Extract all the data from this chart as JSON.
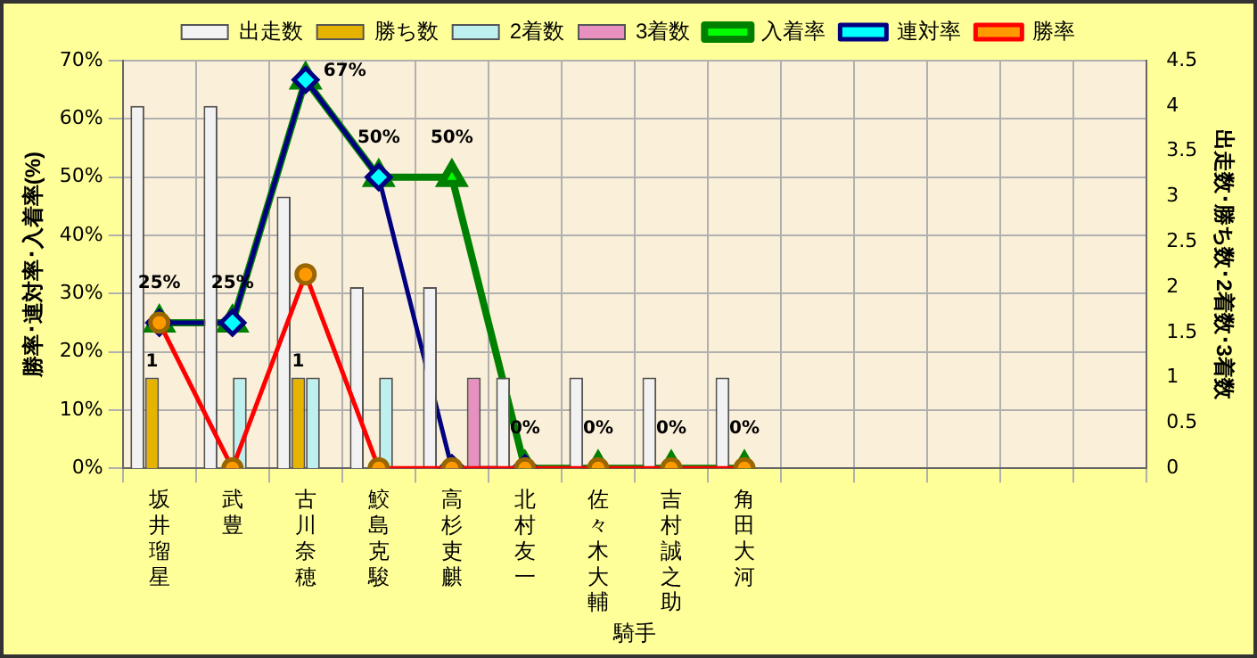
{
  "chart_data": {
    "type": "bar",
    "xlabel": "騎手",
    "ylabel": "勝率･連対率･入着率(%)",
    "y2label": "出走数･勝ち数･2着数･3着数",
    "categories": [
      "坂井瑠星",
      "武豊",
      "古川奈穂",
      "鮫島克駿",
      "高杉吏麒",
      "北村友一",
      "佐々木大輔",
      "吉村誠之助",
      "角田大河",
      null,
      null,
      null,
      null,
      null
    ],
    "series": [
      {
        "name": "出走数",
        "type": "bar",
        "axis": "y2",
        "color": "#f2f2f2",
        "values": [
          4,
          4,
          3,
          2,
          2,
          1,
          1,
          1,
          1,
          null,
          null,
          null,
          null,
          null
        ]
      },
      {
        "name": "勝ち数",
        "type": "bar",
        "axis": "y2",
        "color": "#e6b400",
        "values": [
          1,
          0,
          1,
          0,
          0,
          0,
          0,
          0,
          0,
          null,
          null,
          null,
          null,
          null
        ],
        "value_labels": [
          "1",
          null,
          "1",
          null,
          null,
          null,
          null,
          null,
          null,
          null,
          null,
          null,
          null,
          null
        ]
      },
      {
        "name": "2着数",
        "type": "bar",
        "axis": "y2",
        "color": "#bff0f0",
        "values": [
          0,
          1,
          1,
          1,
          0,
          0,
          0,
          0,
          0,
          null,
          null,
          null,
          null,
          null
        ]
      },
      {
        "name": "3着数",
        "type": "bar",
        "axis": "y2",
        "color": "#e890c0",
        "values": [
          0,
          0,
          0,
          0,
          1,
          0,
          0,
          0,
          0,
          null,
          null,
          null,
          null,
          null
        ]
      },
      {
        "name": "入着率",
        "type": "line",
        "axis": "y",
        "color": "#008000",
        "marker": "triangle",
        "values": [
          25,
          25,
          66.7,
          50,
          50,
          0,
          0,
          0,
          0,
          null,
          null,
          null,
          null,
          null
        ],
        "value_labels": [
          "25%",
          "25%",
          "67%",
          "50%",
          "50%",
          "0%",
          "0%",
          "0%",
          "0%",
          null,
          null,
          null,
          null,
          null
        ]
      },
      {
        "name": "連対率",
        "type": "line",
        "axis": "y",
        "color": "#000080",
        "marker": "diamond",
        "values": [
          25,
          25,
          66.7,
          50,
          0,
          0,
          null,
          null,
          null,
          null,
          null,
          null,
          null,
          null
        ]
      },
      {
        "name": "勝率",
        "type": "line",
        "axis": "y",
        "color": "#ff0000",
        "marker": "circle",
        "values": [
          25,
          0,
          33.3,
          0,
          0,
          0,
          0,
          0,
          0,
          null,
          null,
          null,
          null,
          null
        ]
      }
    ],
    "ylim": [
      0,
      70
    ],
    "yticks": [
      {
        "value": 0,
        "label": "0%"
      },
      {
        "value": 10,
        "label": "10%"
      },
      {
        "value": 20,
        "label": "20%"
      },
      {
        "value": 30,
        "label": "30%"
      },
      {
        "value": 40,
        "label": "40%"
      },
      {
        "value": 50,
        "label": "50%"
      },
      {
        "value": 60,
        "label": "60%"
      },
      {
        "value": 70,
        "label": "70%"
      }
    ],
    "y2lim": [
      0,
      4.5
    ],
    "y2ticks": [
      0,
      {
        "value": 0.5,
        "label": "0.5"
      },
      1,
      {
        "value": 1.5,
        "label": "1.5"
      },
      2,
      {
        "value": 2.5,
        "label": "2.5"
      },
      3,
      {
        "value": 3.5,
        "label": "3.5"
      },
      4,
      {
        "value": 4.5,
        "label": "4.5"
      }
    ],
    "grid": true,
    "legend": "top"
  }
}
